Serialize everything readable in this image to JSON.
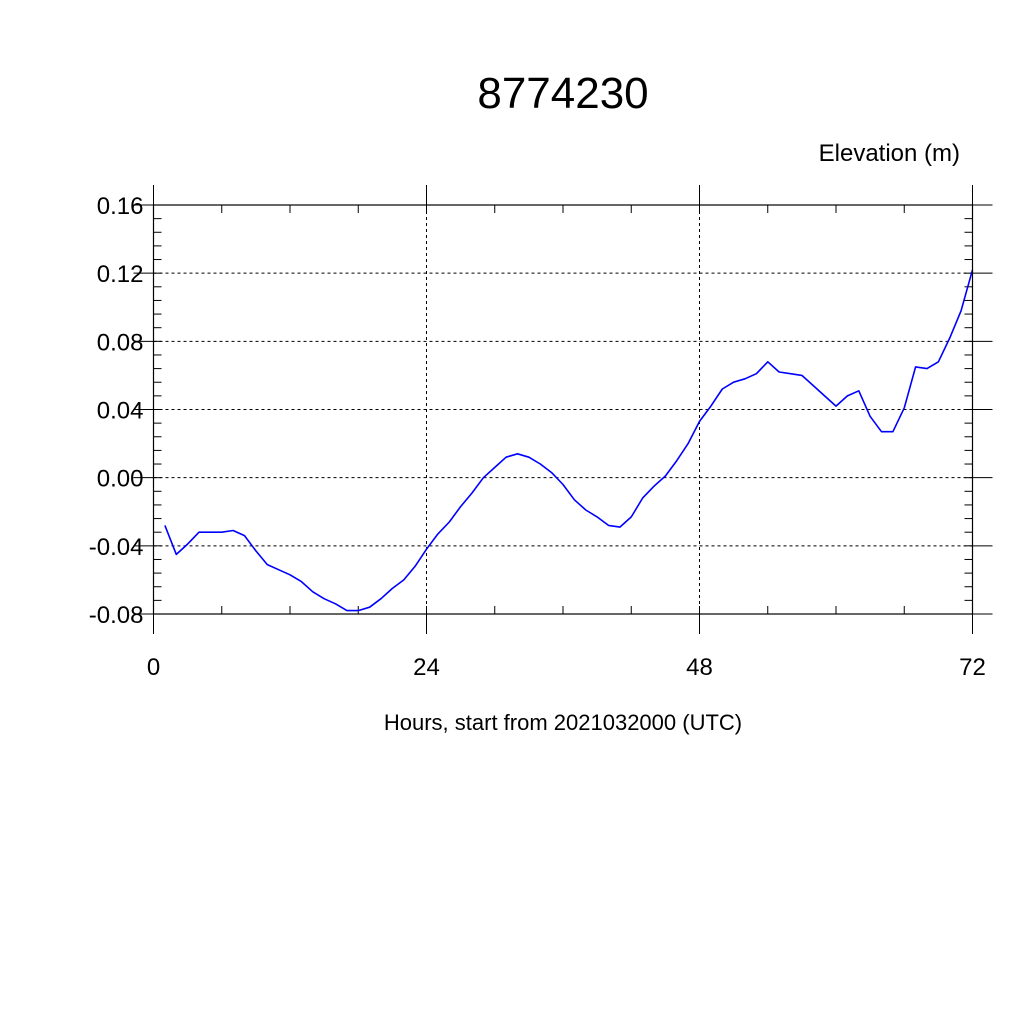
{
  "chart_data": {
    "type": "line",
    "title": "8774230",
    "ylabel": "Elevation (m)",
    "xlabel": "Hours, start from 2021032000 (UTC)",
    "xlim": [
      0,
      72
    ],
    "ylim": [
      -0.08,
      0.16
    ],
    "x_ticks": [
      0,
      24,
      48,
      72
    ],
    "x_tick_labels": [
      "0",
      "24",
      "48",
      "72"
    ],
    "y_ticks": [
      -0.08,
      -0.04,
      0.0,
      0.04,
      0.08,
      0.12,
      0.16
    ],
    "y_tick_labels": [
      "-0.08",
      "-0.04",
      "0.00",
      "0.04",
      "0.08",
      "0.12",
      "0.16"
    ],
    "grid": true,
    "series": [
      {
        "color": "#0000ff",
        "x": [
          1,
          2,
          3,
          4,
          5,
          6,
          7,
          8,
          9,
          10,
          11,
          12,
          13,
          14,
          15,
          16,
          17,
          18,
          19,
          20,
          21,
          22,
          23,
          24,
          25,
          26,
          27,
          28,
          29,
          30,
          31,
          32,
          33,
          34,
          35,
          36,
          37,
          38,
          39,
          40,
          41,
          42,
          43,
          44,
          45,
          46,
          47,
          48,
          49,
          50,
          51,
          52,
          53,
          54,
          55,
          56,
          57,
          58,
          59,
          60,
          61,
          62,
          63,
          64,
          65,
          66,
          67,
          68,
          69,
          70,
          71,
          72
        ],
        "y": [
          -0.028,
          -0.045,
          -0.039,
          -0.032,
          -0.032,
          -0.032,
          -0.031,
          -0.034,
          -0.043,
          -0.051,
          -0.054,
          -0.057,
          -0.061,
          -0.067,
          -0.071,
          -0.074,
          -0.078,
          -0.078,
          -0.076,
          -0.071,
          -0.065,
          -0.06,
          -0.052,
          -0.042,
          -0.033,
          -0.026,
          -0.017,
          -0.009,
          0.0,
          0.006,
          0.012,
          0.014,
          0.012,
          0.008,
          0.003,
          -0.004,
          -0.013,
          -0.019,
          -0.023,
          -0.028,
          -0.029,
          -0.023,
          -0.012,
          -0.005,
          0.001,
          0.01,
          0.02,
          0.033,
          0.042,
          0.052,
          0.056,
          0.058,
          0.061,
          0.068,
          0.062,
          0.061,
          0.06,
          0.054,
          0.048,
          0.042,
          0.048,
          0.051,
          0.036,
          0.027,
          0.027,
          0.041,
          0.065,
          0.064,
          0.068,
          0.082,
          0.098,
          0.122
        ]
      }
    ]
  }
}
